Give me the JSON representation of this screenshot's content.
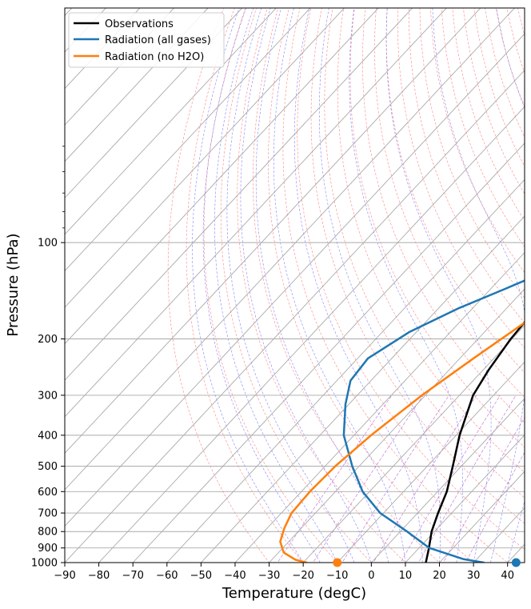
{
  "chart_data": {
    "type": "line",
    "title": "",
    "xlabel": "Temperature (degC)",
    "ylabel": "Pressure (hPa)",
    "xlim": [
      -90,
      45
    ],
    "ylim": [
      1000,
      4.5
    ],
    "y_scale": "log",
    "skew_t": true,
    "grid": true,
    "legend_position": "top-left",
    "x_ticks": [
      "−90",
      "−80",
      "−70",
      "−60",
      "−50",
      "−40",
      "−30",
      "−20",
      "−10",
      "0",
      "10",
      "20",
      "30",
      "40"
    ],
    "x_tick_values": [
      -90,
      -80,
      -70,
      -60,
      -50,
      -40,
      -30,
      -20,
      -10,
      0,
      10,
      20,
      30,
      40
    ],
    "y_ticks": [
      "100",
      "200",
      "300",
      "400",
      "500",
      "600",
      "700",
      "800",
      "900",
      "1000"
    ],
    "y_tick_values": [
      100,
      200,
      300,
      400,
      500,
      600,
      700,
      800,
      900,
      1000
    ],
    "colors": {
      "observations": "#000000",
      "radiation_all": "#1f77b4",
      "radiation_no_h2o": "#ff7f0e",
      "isotherm": "#aaaaaa",
      "isobar": "#aaaaaa",
      "dry_adiabat": "#ff6666",
      "moist_adiabat": "#6666ff",
      "mixing_ratio": "#aa44cc"
    },
    "series": [
      {
        "name": "Observations",
        "color": "#000000",
        "points": [
          {
            "t": 16.0,
            "p": 1000
          },
          {
            "t": 12.9,
            "p": 900
          },
          {
            "t": 9.2,
            "p": 800
          },
          {
            "t": 6.0,
            "p": 700
          },
          {
            "t": 2.7,
            "p": 600
          },
          {
            "t": -2.5,
            "p": 500
          },
          {
            "t": -9.0,
            "p": 400
          },
          {
            "t": -16.0,
            "p": 300
          },
          {
            "t": -18.4,
            "p": 250
          },
          {
            "t": -20.4,
            "p": 200
          },
          {
            "t": -21.6,
            "p": 150
          },
          {
            "t": -21.0,
            "p": 120
          },
          {
            "t": -20.2,
            "p": 100
          },
          {
            "t": -18.8,
            "p": 90
          },
          {
            "t": -17.3,
            "p": 80
          },
          {
            "t": -15.2,
            "p": 70
          },
          {
            "t": 7.7,
            "p": 30
          },
          {
            "t": 30.0,
            "p": 15
          },
          {
            "t": 45.0,
            "p": 10.2
          }
        ]
      },
      {
        "name": "Radiation (all gases)",
        "color": "#1f77b4",
        "points": [
          {
            "t": 33.0,
            "p": 1000
          },
          {
            "t": 26.0,
            "p": 975
          },
          {
            "t": 13.0,
            "p": 900
          },
          {
            "t": 2.0,
            "p": 800
          },
          {
            "t": -11.0,
            "p": 700
          },
          {
            "t": -22.0,
            "p": 600
          },
          {
            "t": -32.0,
            "p": 500
          },
          {
            "t": -43.0,
            "p": 400
          },
          {
            "t": -51.0,
            "p": 320
          },
          {
            "t": -56.0,
            "p": 270
          },
          {
            "t": -57.0,
            "p": 230
          },
          {
            "t": -52.0,
            "p": 190
          },
          {
            "t": -44.0,
            "p": 160
          },
          {
            "t": -36.0,
            "p": 140
          },
          {
            "t": -27.0,
            "p": 120
          },
          {
            "t": -20.0,
            "p": 100
          },
          {
            "t": -9.0,
            "p": 80
          },
          {
            "t": 10.0,
            "p": 50
          },
          {
            "t": 29.0,
            "p": 30
          },
          {
            "t": 45.0,
            "p": 18.7
          }
        ]
      },
      {
        "name": "Radiation (no H2O)",
        "color": "#ff7f0e",
        "points": [
          {
            "t": -19.0,
            "p": 1000
          },
          {
            "t": -23.0,
            "p": 980
          },
          {
            "t": -28.5,
            "p": 930
          },
          {
            "t": -32.5,
            "p": 860
          },
          {
            "t": -35.0,
            "p": 780
          },
          {
            "t": -37.0,
            "p": 700
          },
          {
            "t": -37.5,
            "p": 600
          },
          {
            "t": -37.0,
            "p": 500
          },
          {
            "t": -35.0,
            "p": 400
          },
          {
            "t": -31.0,
            "p": 300
          },
          {
            "t": -26.0,
            "p": 230
          },
          {
            "t": -21.0,
            "p": 180
          },
          {
            "t": -16.5,
            "p": 140
          },
          {
            "t": -10.5,
            "p": 110
          },
          {
            "t": -3.0,
            "p": 80
          },
          {
            "t": 10.0,
            "p": 50
          },
          {
            "t": 29.0,
            "p": 28
          },
          {
            "t": 45.0,
            "p": 17.5
          }
        ]
      }
    ],
    "surface_markers": [
      {
        "series": "Radiation (no H2O)",
        "t": -10.0,
        "p": 1000,
        "color": "#ff7f0e"
      },
      {
        "series": "Radiation (all gases)",
        "t": 42.5,
        "p": 1000,
        "color": "#1f77b4"
      }
    ]
  }
}
